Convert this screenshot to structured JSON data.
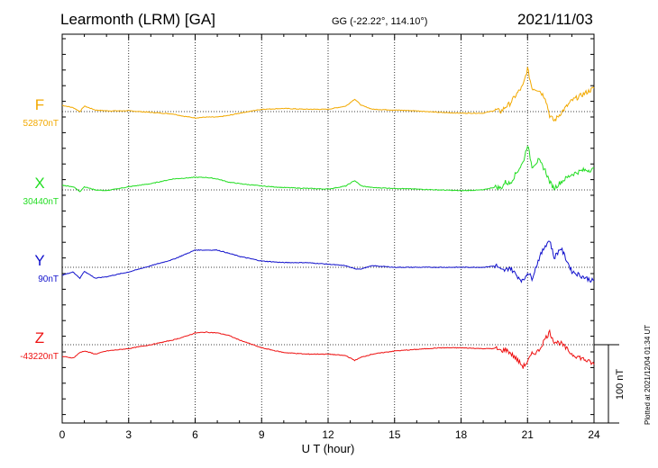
{
  "header": {
    "station": "Learmonth (LRM)  [GA]",
    "coords": "GG (-22.22°, 114.10°)",
    "date": "2021/11/03"
  },
  "footer": {
    "plotted": "Plotted at 2021/12/04 01:34 UT"
  },
  "colors": {
    "F": "#f2a900",
    "X": "#22dd22",
    "Y": "#1111cc",
    "Z": "#ee1111"
  },
  "chart_data": {
    "type": "line",
    "xlabel": "U T (hour)",
    "xlim": [
      0,
      24
    ],
    "xticks": [
      "0",
      "3",
      "6",
      "9",
      "12",
      "15",
      "18",
      "21",
      "24"
    ],
    "scale_bar": "100 nT",
    "series": [
      {
        "name": "F",
        "baseline": "52870nT",
        "x": [
          0,
          0.5,
          0.8,
          1,
          1.5,
          2,
          3,
          4,
          5,
          5.5,
          6,
          6.5,
          7,
          7.5,
          8,
          9,
          10,
          11,
          12,
          12.8,
          13.2,
          13.5,
          14,
          15,
          16,
          17,
          18,
          19,
          19.6,
          19.8,
          20,
          20.2,
          20.5,
          20.8,
          21,
          21.2,
          21.5,
          21.8,
          22,
          22.2,
          22.5,
          23,
          23.5,
          24
        ],
        "values": [
          8,
          5,
          0,
          7,
          2,
          1,
          1,
          -1,
          -3,
          -6,
          -8,
          -7,
          -7,
          -5,
          -2,
          3,
          4,
          3,
          3,
          7,
          16,
          8,
          3,
          2,
          1,
          -1,
          -2,
          -2,
          2,
          0,
          6,
          10,
          22,
          33,
          55,
          30,
          28,
          18,
          -5,
          -12,
          -2,
          14,
          22,
          30
        ]
      },
      {
        "name": "X",
        "baseline": "30440nT",
        "x": [
          0,
          0.5,
          0.8,
          1,
          1.5,
          2,
          3,
          4,
          5,
          5.5,
          6,
          6.5,
          7,
          7.5,
          8,
          9,
          10,
          11,
          12,
          12.8,
          13.2,
          13.5,
          14,
          15,
          16,
          17,
          18,
          19,
          19.6,
          19.8,
          20,
          20.2,
          20.5,
          20.8,
          21,
          21.2,
          21.5,
          21.8,
          22,
          22.2,
          22.5,
          23,
          23.5,
          24
        ],
        "values": [
          6,
          4,
          -2,
          4,
          0,
          -1,
          4,
          8,
          14,
          15,
          16,
          16,
          14,
          10,
          8,
          5,
          3,
          2,
          1,
          5,
          12,
          5,
          3,
          2,
          1,
          0,
          -1,
          0,
          4,
          2,
          10,
          8,
          22,
          35,
          58,
          30,
          38,
          25,
          10,
          2,
          10,
          20,
          25,
          26
        ]
      },
      {
        "name": "Y",
        "baseline": "90nT",
        "x": [
          0,
          0.5,
          0.8,
          1,
          1.5,
          2,
          3,
          4,
          5,
          5.5,
          6,
          6.5,
          7,
          7.5,
          8,
          9,
          10,
          11,
          12,
          12.8,
          13.2,
          13.5,
          14,
          15,
          16,
          17,
          18,
          19,
          19.6,
          19.8,
          20,
          20.2,
          20.5,
          20.8,
          21,
          21.2,
          21.5,
          21.8,
          22,
          22.2,
          22.5,
          23,
          23.5,
          24
        ],
        "values": [
          -10,
          -6,
          -14,
          -5,
          -14,
          -12,
          -6,
          2,
          10,
          16,
          22,
          22,
          22,
          18,
          14,
          8,
          6,
          6,
          4,
          2,
          -2,
          -2,
          2,
          0,
          0,
          0,
          0,
          0,
          2,
          -4,
          -4,
          0,
          -10,
          -18,
          -6,
          -14,
          10,
          28,
          35,
          12,
          25,
          -5,
          -12,
          -18
        ]
      },
      {
        "name": "Z",
        "baseline": "-43220nT",
        "x": [
          0,
          0.5,
          0.8,
          1,
          1.5,
          2,
          3,
          4,
          5,
          5.5,
          6,
          6.5,
          7,
          7.5,
          8,
          9,
          10,
          11,
          12,
          12.8,
          13.2,
          13.5,
          14,
          15,
          16,
          17,
          18,
          19,
          19.6,
          19.8,
          20,
          20.2,
          20.5,
          20.8,
          21,
          21.2,
          21.5,
          21.8,
          22,
          22.2,
          22.5,
          23,
          23.5,
          24
        ],
        "values": [
          -15,
          -17,
          -10,
          -8,
          -12,
          -8,
          -5,
          0,
          6,
          10,
          15,
          16,
          15,
          12,
          6,
          -4,
          -10,
          -12,
          -12,
          -14,
          -20,
          -16,
          -12,
          -8,
          -6,
          -4,
          -4,
          -5,
          -5,
          -8,
          -6,
          -10,
          -18,
          -28,
          -22,
          -12,
          -8,
          8,
          16,
          4,
          2,
          -12,
          -18,
          -25
        ]
      }
    ]
  }
}
